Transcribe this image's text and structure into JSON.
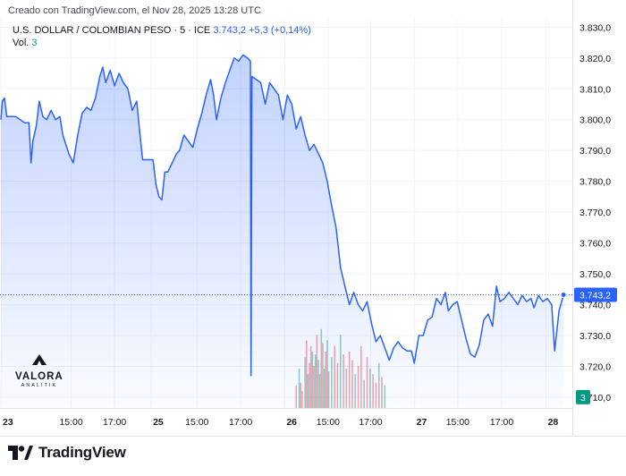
{
  "header": {
    "credit": "Creado con TradingView.com, el Nov 28, 2025 13:28 UTC",
    "symbol": "U.S. DOLLAR / COLOMBIAN PESO · 5 · ICE",
    "last_price": "3.743,2",
    "change": "+5,3 (+0,14%)",
    "volume_label": "Vol.",
    "volume_value": "3"
  },
  "footer": {
    "brand": "TradingView"
  },
  "watermark": {
    "name": "VALORA",
    "tagline": "ANALITIK"
  },
  "colors": {
    "line": "#2962ff",
    "area_fill": "#2962ff",
    "volume_up": "#089981",
    "volume_down": "#f23645",
    "price_tag": "#2962ff",
    "volume_tag": "#089981"
  },
  "chart_data": {
    "type": "area",
    "y_axis": {
      "ticks": [
        3710,
        3720,
        3730,
        3740,
        3750,
        3760,
        3770,
        3780,
        3790,
        3800,
        3810,
        3820,
        3830
      ],
      "tick_labels": [
        "3.710,0",
        "3.720,0",
        "3.730,0",
        "3.740,0",
        "3.750,0",
        "3.760,0",
        "3.770,0",
        "3.780,0",
        "3.790,0",
        "3.800,0",
        "3.810,0",
        "3.820,0",
        "3.830,0"
      ],
      "range": [
        3706.5,
        3833
      ],
      "position": "right"
    },
    "x_axis": {
      "ticks": [
        {
          "label": "23",
          "t": 0,
          "bold": true
        },
        {
          "label": "15:00",
          "t": 2.38,
          "bold": false
        },
        {
          "label": "17:00",
          "t": 3.85,
          "bold": false
        },
        {
          "label": "25",
          "t": 5.09,
          "bold": true
        },
        {
          "label": "15:00",
          "t": 6.64,
          "bold": false
        },
        {
          "label": "17:00",
          "t": 8.12,
          "bold": false
        },
        {
          "label": "26",
          "t": 9.61,
          "bold": true
        },
        {
          "label": "15:00",
          "t": 11.08,
          "bold": false
        },
        {
          "label": "17:00",
          "t": 12.52,
          "bold": false
        },
        {
          "label": "27",
          "t": 14.01,
          "bold": true
        },
        {
          "label": "15:00",
          "t": 15.47,
          "bold": false
        },
        {
          "label": "17:00",
          "t": 16.96,
          "bold": false
        },
        {
          "label": "28",
          "t": 18.46,
          "bold": true
        }
      ],
      "range": [
        -0.03,
        19.35
      ]
    },
    "last_price": 3743.2,
    "series": [
      {
        "values": [
          [
            0,
            3800
          ],
          [
            0.05,
            3806
          ],
          [
            0.12,
            3807
          ],
          [
            0.2,
            3801
          ],
          [
            0.35,
            3801
          ],
          [
            0.5,
            3801
          ],
          [
            0.65,
            3800
          ],
          [
            0.8,
            3799
          ],
          [
            0.95,
            3799
          ],
          [
            1.02,
            3786
          ],
          [
            1.08,
            3793
          ],
          [
            1.2,
            3798
          ],
          [
            1.3,
            3806
          ],
          [
            1.42,
            3801
          ],
          [
            1.55,
            3800
          ],
          [
            1.7,
            3803
          ],
          [
            1.85,
            3800
          ],
          [
            2.0,
            3801
          ],
          [
            2.1,
            3795
          ],
          [
            2.3,
            3789
          ],
          [
            2.45,
            3786
          ],
          [
            2.6,
            3795
          ],
          [
            2.75,
            3802
          ],
          [
            2.9,
            3804
          ],
          [
            3.05,
            3803
          ],
          [
            3.2,
            3807
          ],
          [
            3.35,
            3814
          ],
          [
            3.45,
            3817
          ],
          [
            3.55,
            3812
          ],
          [
            3.7,
            3816
          ],
          [
            3.85,
            3811
          ],
          [
            4.0,
            3815
          ],
          [
            4.15,
            3812
          ],
          [
            4.3,
            3810
          ],
          [
            4.45,
            3803
          ],
          [
            4.6,
            3806
          ],
          [
            4.7,
            3796
          ],
          [
            4.8,
            3787
          ],
          [
            4.95,
            3787
          ],
          [
            5.05,
            3787
          ],
          [
            5.15,
            3787
          ],
          [
            5.25,
            3779
          ],
          [
            5.35,
            3775
          ],
          [
            5.45,
            3774
          ],
          [
            5.55,
            3783
          ],
          [
            5.65,
            3783
          ],
          [
            5.8,
            3786
          ],
          [
            5.95,
            3789
          ],
          [
            6.05,
            3790
          ],
          [
            6.2,
            3795
          ],
          [
            6.35,
            3793
          ],
          [
            6.5,
            3791
          ],
          [
            6.65,
            3797
          ],
          [
            6.8,
            3802
          ],
          [
            6.95,
            3808
          ],
          [
            7.1,
            3813
          ],
          [
            7.2,
            3808
          ],
          [
            7.3,
            3800
          ],
          [
            7.45,
            3807
          ],
          [
            7.6,
            3812
          ],
          [
            7.75,
            3816
          ],
          [
            7.9,
            3820
          ],
          [
            8.05,
            3819
          ],
          [
            8.2,
            3821
          ],
          [
            8.35,
            3820
          ],
          [
            8.45,
            3819
          ],
          [
            8.47,
            3717
          ],
          [
            8.5,
            3814
          ],
          [
            8.65,
            3813
          ],
          [
            8.8,
            3812
          ],
          [
            8.95,
            3805
          ],
          [
            9.1,
            3812
          ],
          [
            9.25,
            3810
          ],
          [
            9.4,
            3808
          ],
          [
            9.55,
            3800
          ],
          [
            9.7,
            3808
          ],
          [
            9.85,
            3805
          ],
          [
            10.0,
            3797
          ],
          [
            10.15,
            3801
          ],
          [
            10.3,
            3795
          ],
          [
            10.45,
            3790
          ],
          [
            10.6,
            3792
          ],
          [
            10.75,
            3789
          ],
          [
            10.9,
            3786
          ],
          [
            11.05,
            3780
          ],
          [
            11.2,
            3772
          ],
          [
            11.35,
            3765
          ],
          [
            11.5,
            3752
          ],
          [
            11.65,
            3746
          ],
          [
            11.8,
            3740
          ],
          [
            11.95,
            3744
          ],
          [
            12.1,
            3740
          ],
          [
            12.25,
            3738
          ],
          [
            12.4,
            3741
          ],
          [
            12.55,
            3734
          ],
          [
            12.7,
            3728
          ],
          [
            12.85,
            3730
          ],
          [
            13.0,
            3726
          ],
          [
            13.15,
            3722
          ],
          [
            13.3,
            3726
          ],
          [
            13.45,
            3728
          ],
          [
            13.6,
            3726
          ],
          [
            13.75,
            3725
          ],
          [
            13.9,
            3725
          ],
          [
            14.0,
            3721
          ],
          [
            14.15,
            3730
          ],
          [
            14.3,
            3730
          ],
          [
            14.45,
            3735
          ],
          [
            14.6,
            3736
          ],
          [
            14.75,
            3742
          ],
          [
            14.9,
            3740
          ],
          [
            15.05,
            3744
          ],
          [
            15.15,
            3738
          ],
          [
            15.3,
            3740
          ],
          [
            15.45,
            3741
          ],
          [
            15.6,
            3735
          ],
          [
            15.75,
            3729
          ],
          [
            15.9,
            3724
          ],
          [
            16.05,
            3723
          ],
          [
            16.2,
            3727
          ],
          [
            16.35,
            3735
          ],
          [
            16.5,
            3737
          ],
          [
            16.65,
            3733
          ],
          [
            16.78,
            3746
          ],
          [
            16.9,
            3741
          ],
          [
            17.05,
            3742
          ],
          [
            17.2,
            3744
          ],
          [
            17.35,
            3742
          ],
          [
            17.5,
            3740
          ],
          [
            17.65,
            3743
          ],
          [
            17.8,
            3741
          ],
          [
            17.95,
            3742
          ],
          [
            18.05,
            3739
          ],
          [
            18.2,
            3743
          ],
          [
            18.35,
            3741
          ],
          [
            18.5,
            3742
          ],
          [
            18.65,
            3740
          ],
          [
            18.75,
            3725
          ],
          [
            18.9,
            3738
          ],
          [
            19.05,
            3743.2
          ]
        ]
      }
    ],
    "volume_range": [
      0,
      200
    ],
    "volume": [
      [
        10.0,
        40,
        "down"
      ],
      [
        10.1,
        70,
        "up"
      ],
      [
        10.15,
        45,
        "down"
      ],
      [
        10.2,
        30,
        "down"
      ],
      [
        10.3,
        90,
        "up"
      ],
      [
        10.35,
        120,
        "down"
      ],
      [
        10.4,
        60,
        "up"
      ],
      [
        10.45,
        80,
        "down"
      ],
      [
        10.5,
        110,
        "down"
      ],
      [
        10.55,
        100,
        "up"
      ],
      [
        10.6,
        75,
        "down"
      ],
      [
        10.65,
        95,
        "up"
      ],
      [
        10.7,
        130,
        "down"
      ],
      [
        10.75,
        85,
        "up"
      ],
      [
        10.8,
        60,
        "down"
      ],
      [
        10.85,
        140,
        "up"
      ],
      [
        10.9,
        115,
        "down"
      ],
      [
        10.95,
        70,
        "up"
      ],
      [
        11.0,
        100,
        "down"
      ],
      [
        11.05,
        120,
        "up"
      ],
      [
        11.1,
        65,
        "down"
      ],
      [
        11.2,
        90,
        "up"
      ],
      [
        11.3,
        110,
        "down"
      ],
      [
        11.4,
        80,
        "down"
      ],
      [
        11.5,
        130,
        "up"
      ],
      [
        11.6,
        95,
        "down"
      ],
      [
        11.7,
        70,
        "up"
      ],
      [
        11.8,
        100,
        "down"
      ],
      [
        11.9,
        85,
        "down"
      ],
      [
        12.0,
        60,
        "up"
      ],
      [
        12.1,
        75,
        "down"
      ],
      [
        12.2,
        110,
        "down"
      ],
      [
        12.3,
        50,
        "up"
      ],
      [
        12.4,
        90,
        "down"
      ],
      [
        12.5,
        70,
        "up"
      ],
      [
        12.6,
        60,
        "down"
      ],
      [
        12.7,
        45,
        "down"
      ],
      [
        12.8,
        80,
        "up"
      ],
      [
        12.9,
        55,
        "down"
      ],
      [
        13.0,
        40,
        "up"
      ]
    ]
  }
}
